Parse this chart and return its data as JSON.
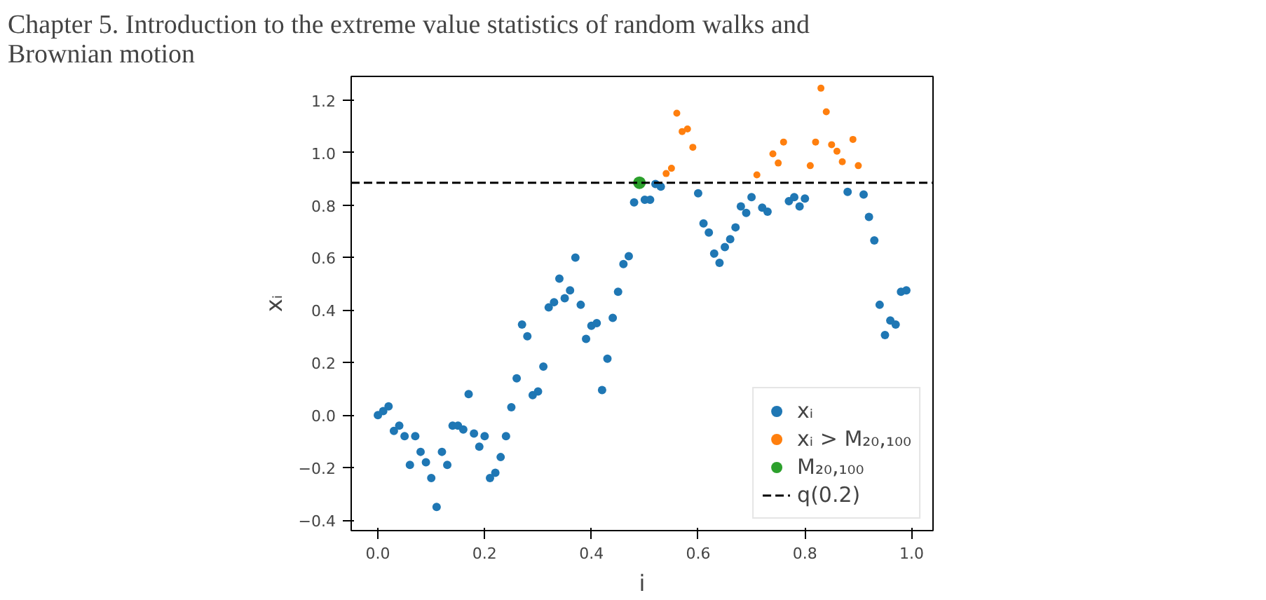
{
  "chart_data": {
    "type": "scatter",
    "title": "Chapter 5.  Introduction to the extreme value statistics of random walks and Brownian motion",
    "xlabel": "i",
    "ylabel": "xᵢ",
    "x": [
      0.0,
      0.01,
      0.02,
      0.03,
      0.04,
      0.05,
      0.06,
      0.07,
      0.08,
      0.09,
      0.1,
      0.11,
      0.12,
      0.13,
      0.14,
      0.15,
      0.16,
      0.17,
      0.18,
      0.19,
      0.2,
      0.21,
      0.22,
      0.23,
      0.24,
      0.25,
      0.26,
      0.27,
      0.28,
      0.29,
      0.3,
      0.31,
      0.32,
      0.33,
      0.34,
      0.35,
      0.36,
      0.37,
      0.38,
      0.39,
      0.4,
      0.41,
      0.42,
      0.43,
      0.44,
      0.45,
      0.46,
      0.47,
      0.48,
      0.49,
      0.5,
      0.51,
      0.52,
      0.53,
      0.54,
      0.55,
      0.56,
      0.57,
      0.58,
      0.59,
      0.6,
      0.61,
      0.62,
      0.63,
      0.64,
      0.65,
      0.66,
      0.67,
      0.68,
      0.69,
      0.7,
      0.71,
      0.72,
      0.73,
      0.74,
      0.75,
      0.76,
      0.77,
      0.78,
      0.79,
      0.8,
      0.81,
      0.82,
      0.83,
      0.84,
      0.85,
      0.86,
      0.87,
      0.88,
      0.89,
      0.9,
      0.91,
      0.92,
      0.93,
      0.94,
      0.95,
      0.96,
      0.97,
      0.98,
      0.99
    ],
    "series": [
      {
        "name": "xᵢ",
        "color": "#1f77b4",
        "values": [
          0.0,
          0.015,
          0.033,
          -0.06,
          -0.04,
          -0.08,
          -0.19,
          -0.08,
          -0.14,
          -0.18,
          -0.24,
          -0.35,
          -0.14,
          -0.19,
          -0.04,
          -0.04,
          -0.055,
          0.08,
          -0.07,
          -0.12,
          -0.08,
          -0.24,
          -0.22,
          -0.16,
          -0.08,
          0.03,
          0.14,
          0.345,
          0.3,
          0.076,
          0.09,
          0.185,
          0.41,
          0.43,
          0.52,
          0.445,
          0.475,
          0.6,
          0.42,
          0.29,
          0.34,
          0.35,
          0.095,
          0.215,
          0.37,
          0.47,
          0.575,
          0.605,
          0.81,
          null,
          0.82,
          0.82,
          0.88,
          0.87,
          null,
          null,
          null,
          null,
          null,
          null,
          0.845,
          0.73,
          0.695,
          0.615,
          0.58,
          0.64,
          0.67,
          0.715,
          0.795,
          0.77,
          0.83,
          null,
          0.79,
          0.775,
          null,
          null,
          null,
          0.815,
          0.83,
          0.795,
          0.825,
          null,
          null,
          null,
          null,
          null,
          null,
          null,
          0.85,
          null,
          null,
          0.84,
          0.755,
          0.665,
          0.42,
          0.305,
          0.36,
          0.345,
          0.47,
          0.475
        ]
      },
      {
        "name": "xᵢ > M₂₀,₁₀₀",
        "color": "#ff7f0e",
        "values": [
          null,
          null,
          null,
          null,
          null,
          null,
          null,
          null,
          null,
          null,
          null,
          null,
          null,
          null,
          null,
          null,
          null,
          null,
          null,
          null,
          null,
          null,
          null,
          null,
          null,
          null,
          null,
          null,
          null,
          null,
          null,
          null,
          null,
          null,
          null,
          null,
          null,
          null,
          null,
          null,
          null,
          null,
          null,
          null,
          null,
          null,
          null,
          null,
          null,
          null,
          null,
          null,
          null,
          null,
          0.92,
          0.94,
          1.15,
          1.08,
          1.09,
          1.02,
          null,
          null,
          null,
          null,
          null,
          null,
          null,
          null,
          null,
          null,
          null,
          0.915,
          null,
          null,
          0.995,
          0.96,
          1.04,
          null,
          null,
          null,
          null,
          0.95,
          1.04,
          1.245,
          1.155,
          1.03,
          1.005,
          0.965,
          null,
          1.05,
          0.95,
          null,
          null,
          null,
          null,
          null,
          null,
          null,
          null,
          null
        ]
      },
      {
        "name": "M₂₀,₁₀₀",
        "color": "#2ca02c",
        "values": [
          null,
          null,
          null,
          null,
          null,
          null,
          null,
          null,
          null,
          null,
          null,
          null,
          null,
          null,
          null,
          null,
          null,
          null,
          null,
          null,
          null,
          null,
          null,
          null,
          null,
          null,
          null,
          null,
          null,
          null,
          null,
          null,
          null,
          null,
          null,
          null,
          null,
          null,
          null,
          null,
          null,
          null,
          null,
          null,
          null,
          null,
          null,
          null,
          null,
          0.885,
          null,
          null,
          null,
          null,
          null,
          null,
          null,
          null,
          null,
          null,
          null,
          null,
          null,
          null,
          null,
          null,
          null,
          null,
          null,
          null,
          null,
          null,
          null,
          null,
          null,
          null,
          null,
          null,
          null,
          null,
          null,
          null,
          null,
          null,
          null,
          null,
          null,
          null,
          null,
          null,
          null,
          null,
          null,
          null,
          null,
          null,
          null,
          null,
          null,
          null
        ]
      }
    ],
    "ref_lines": [
      {
        "axis": "y",
        "value": 0.885,
        "label": "q(0.2)",
        "color": "#000000",
        "line_style": "dashed"
      }
    ],
    "xlim": [
      -0.05,
      1.04
    ],
    "ylim": [
      -0.44,
      1.29
    ],
    "xticks": [
      {
        "value": 0,
        "label": "0.0"
      },
      {
        "value": 0.2,
        "label": "0.2"
      },
      {
        "value": 0.4,
        "label": "0.4"
      },
      {
        "value": 0.6,
        "label": "0.6"
      },
      {
        "value": 0.8,
        "label": "0.8"
      },
      {
        "value": 1,
        "label": "1.0"
      }
    ],
    "yticks": [
      {
        "value": -0.4,
        "label": "−0.4"
      },
      {
        "value": -0.2,
        "label": "−0.2"
      },
      {
        "value": 0,
        "label": "0.0"
      },
      {
        "value": 0.2,
        "label": "0.2"
      },
      {
        "value": 0.4,
        "label": "0.4"
      },
      {
        "value": 0.6,
        "label": "0.6"
      },
      {
        "value": 0.8,
        "label": "0.8"
      },
      {
        "value": 1,
        "label": "1.0"
      },
      {
        "value": 1.2,
        "label": "1.2"
      }
    ],
    "grid": false,
    "legend": "bottom right",
    "marker": "circle"
  }
}
